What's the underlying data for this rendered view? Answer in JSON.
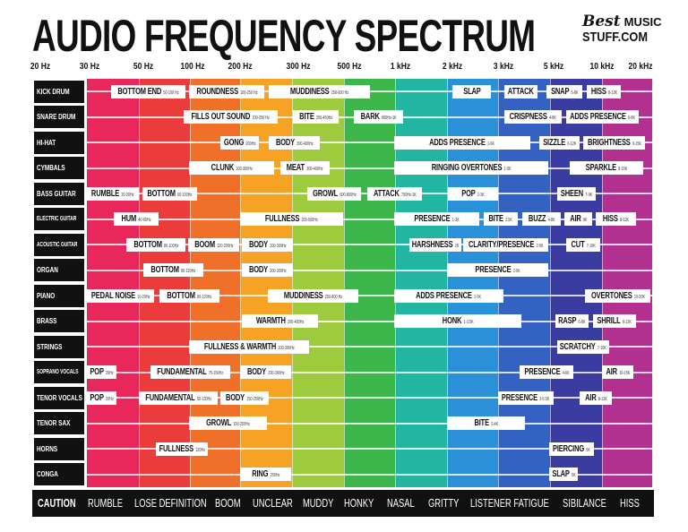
{
  "title": "AUDIO FREQUENCY SPECTRUM",
  "logo": {
    "line1": "Best",
    "line1b": "MUSIC",
    "line2": "STUFF.COM"
  },
  "frequencies": [
    "20 Hz",
    "30 Hz",
    "50 Hz",
    "100 Hz",
    "200 Hz",
    "300 Hz",
    "500 Hz",
    "1 kHz",
    "2 kHz",
    "3 kHz",
    "5 kHz",
    "10 kHz",
    "20 kHz"
  ],
  "band_colors": [
    "#e8285a",
    "#ec3b3b",
    "#f0702a",
    "#f6a325",
    "#9dcb3d",
    "#3db64b",
    "#22b5a1",
    "#2a90d8",
    "#3462c2",
    "#3a3ca2",
    "#b2308f"
  ],
  "instruments": [
    {
      "name": "KICK DRUM",
      "tags": [
        [
          "BOTTOM END",
          "50-100 Hz"
        ],
        [
          "ROUNDNESS",
          "100-250 Hz"
        ],
        [
          "MUDDINESS",
          "250-600 Hz"
        ],
        [
          "SLAP",
          ""
        ],
        [
          "ATTACK",
          ""
        ],
        [
          "SNAP",
          "5-8K"
        ],
        [
          "HISS",
          "8-12K"
        ]
      ]
    },
    {
      "name": "SNARE DRUM",
      "tags": [
        [
          "FILLS OUT SOUND",
          "100-250 Hz"
        ],
        [
          "BITE",
          "350-450Hz"
        ],
        [
          "BARK",
          "800Hz-1K"
        ],
        [
          "CRISPNESS",
          "4-8K"
        ],
        [
          "ADDS PRESENCE",
          "6-8K"
        ]
      ]
    },
    {
      "name": "HI-HAT",
      "tags": [
        [
          "GONG",
          "200Hz"
        ],
        [
          "BODY",
          "300-400Hz"
        ],
        [
          "ADDS PRESENCE",
          "1-6K"
        ],
        [
          "SIZZLE",
          "6-12K"
        ],
        [
          "BRIGHTNESS",
          "9-15K"
        ]
      ]
    },
    {
      "name": "CYMBALS",
      "tags": [
        [
          "CLUNK",
          "100-300Hz"
        ],
        [
          "MEAT",
          "300-400Hz"
        ],
        [
          "RINGING OVERTONES",
          "1-5K"
        ],
        [
          "SPARKLE",
          "8-15K"
        ]
      ]
    },
    {
      "name": "BASS GUITAR",
      "tags": [
        [
          "RUMBLE",
          "20-30Hz"
        ],
        [
          "BOTTOM",
          "60-100Hz"
        ],
        [
          "GROWL",
          "600-800Hz"
        ],
        [
          "ATTACK",
          "700Hz-1K"
        ],
        [
          "POP",
          "2-3K"
        ],
        [
          "SHEEN",
          "7-9K"
        ]
      ]
    },
    {
      "name": "ELECTRIC GUITAR",
      "tags": [
        [
          "HUM",
          "40-60Hz"
        ],
        [
          "FULLNESS",
          "200-500Hz"
        ],
        [
          "PRESENCE",
          "1-3K"
        ],
        [
          "BITE",
          "2.5K"
        ],
        [
          "BUZZ",
          "4-8K"
        ],
        [
          "AIR",
          "8K"
        ],
        [
          "HISS",
          "8-12K"
        ]
      ]
    },
    {
      "name": "ACOUSTIC GUITAR",
      "tags": [
        [
          "BOTTOM",
          "80-100Hz"
        ],
        [
          "BOOM",
          "120-200Hz"
        ],
        [
          "BODY",
          "200-300Hz"
        ],
        [
          "HARSHNESS",
          "2K"
        ],
        [
          "CLARITY/PRESENCE",
          "2-5K"
        ],
        [
          "CUT",
          "7-10K"
        ]
      ]
    },
    {
      "name": "ORGAN",
      "tags": [
        [
          "BOTTOM",
          "80-120Hz"
        ],
        [
          "BODY",
          "200-300Hz"
        ],
        [
          "PRESENCE",
          "2-5K"
        ]
      ]
    },
    {
      "name": "PIANO",
      "tags": [
        [
          "PEDAL NOISE",
          "10-20Hz"
        ],
        [
          "BOTTOM",
          "80-120Hz"
        ],
        [
          "MUDDINESS",
          "250-800 Hz"
        ],
        [
          "ADDS PRESENCE",
          "1-5K"
        ],
        [
          "OVERTONES",
          "10-20K"
        ]
      ]
    },
    {
      "name": "BRASS",
      "tags": [
        [
          "WARMTH",
          "200-400Hz"
        ],
        [
          "HONK",
          "1-3.5K"
        ],
        [
          "RASP",
          "6-8K"
        ],
        [
          "SHRILL",
          "8-12K"
        ]
      ]
    },
    {
      "name": "STRINGS",
      "tags": [
        [
          "FULLNESS & WARMTH",
          "100-300Hz"
        ],
        [
          "SCRATCHY",
          "7-10K"
        ]
      ]
    },
    {
      "name": "SOPRANO VOCALS",
      "tags": [
        [
          "POP",
          "20Hz"
        ],
        [
          "FUNDAMENTAL",
          "75-150Hz"
        ],
        [
          "BODY",
          "200-300Hz"
        ],
        [
          "PRESENCE",
          "4-6K"
        ],
        [
          "AIR",
          "10-15K"
        ]
      ]
    },
    {
      "name": "TENOR VOCALS",
      "tags": [
        [
          "POP",
          "20Hz"
        ],
        [
          "FUNDAMENTAL",
          "50-120Hz"
        ],
        [
          "BODY",
          "150-250Hz"
        ],
        [
          "PRESENCE",
          "3-5.5K"
        ],
        [
          "AIR",
          "8-13K"
        ]
      ]
    },
    {
      "name": "TENOR SAX",
      "tags": [
        [
          "GROWL",
          "100-250Hz"
        ],
        [
          "BITE",
          "2-4K"
        ]
      ]
    },
    {
      "name": "HORNS",
      "tags": [
        [
          "FULLNESS",
          "120Hz"
        ],
        [
          "PIERCING",
          "5K"
        ]
      ]
    },
    {
      "name": "CONGA",
      "tags": [
        [
          "RING",
          "200Hz"
        ],
        [
          "SLAP",
          "5K"
        ]
      ]
    }
  ],
  "caution": {
    "label": "CAUTION",
    "words": [
      "RUMBLE",
      "LOSE DEFINITION",
      "BOOM",
      "UNCLEAR",
      "MUDDY",
      "HONKY",
      "NASAL",
      "GRITTY",
      "LISTENER FATIGUE",
      "SIBILANCE",
      "HISS"
    ]
  }
}
